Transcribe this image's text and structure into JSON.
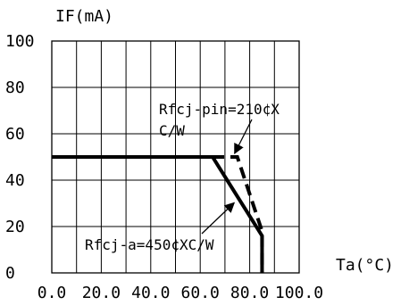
{
  "chart_data": {
    "type": "line",
    "ylabel": "IF(mA)",
    "xlabel": "Ta(°C)",
    "xlim": [
      0,
      100
    ],
    "ylim": [
      0,
      100
    ],
    "x_ticks": [
      "0.0",
      "20.0",
      "40.0",
      "60.0",
      "80.0",
      "100.0"
    ],
    "y_ticks": [
      "0",
      "20",
      "40",
      "60",
      "80",
      "100"
    ],
    "grid": true,
    "series": [
      {
        "style": "solid",
        "points": [
          [
            0,
            50
          ],
          [
            65,
            50
          ],
          [
            85,
            16
          ],
          [
            85,
            0
          ]
        ]
      },
      {
        "style": "dashed",
        "points": [
          [
            65,
            50
          ],
          [
            75,
            50
          ],
          [
            85,
            18
          ],
          [
            85,
            0
          ]
        ]
      }
    ],
    "annotations": [
      {
        "text": "Rfcj-pin=210¢X",
        "points_to": [
          75,
          50
        ]
      },
      {
        "text": "C/W"
      },
      {
        "text": "Rfcj-a=450¢XC/W",
        "points_to": [
          73,
          31
        ]
      }
    ]
  }
}
